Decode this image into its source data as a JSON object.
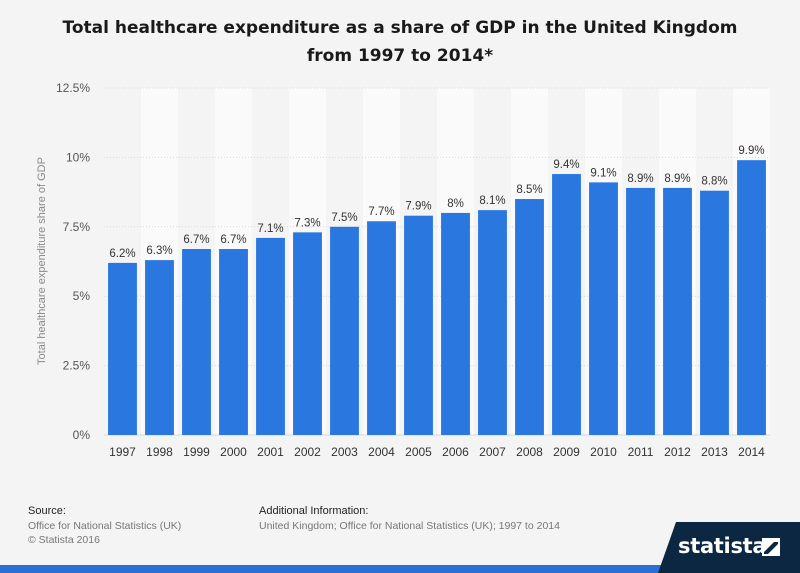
{
  "title": "Total healthcare expenditure as a share of GDP in the United Kingdom from 1997 to 2014*",
  "chart_data": {
    "type": "bar",
    "categories": [
      "1997",
      "1998",
      "1999",
      "2000",
      "2001",
      "2002",
      "2003",
      "2004",
      "2005",
      "2006",
      "2007",
      "2008",
      "2009",
      "2010",
      "2011",
      "2012",
      "2013",
      "2014"
    ],
    "values": [
      6.2,
      6.3,
      6.7,
      6.7,
      7.1,
      7.3,
      7.5,
      7.7,
      7.9,
      8.0,
      8.1,
      8.5,
      9.4,
      9.1,
      8.9,
      8.9,
      8.8,
      9.9
    ],
    "value_labels": [
      "6.2%",
      "6.3%",
      "6.7%",
      "6.7%",
      "7.1%",
      "7.3%",
      "7.5%",
      "7.7%",
      "7.9%",
      "8%",
      "8.1%",
      "8.5%",
      "9.4%",
      "9.1%",
      "8.9%",
      "8.9%",
      "8.8%",
      "9.9%"
    ],
    "ylabel": "Total healthcare expenditure share of GDP",
    "xlabel": "",
    "ylim": [
      0,
      12.5
    ],
    "yticks": [
      0,
      2.5,
      5,
      7.5,
      10,
      12.5
    ],
    "ytick_labels": [
      "0%",
      "2.5%",
      "5%",
      "7.5%",
      "10%",
      "12.5%"
    ],
    "bar_color": "#2a77e0",
    "grid": true
  },
  "footer": {
    "source_label": "Source:",
    "source_lines": [
      "Office for National Statistics (UK)",
      "© Statista 2016"
    ],
    "info_label": "Additional Information:",
    "info_text": "United Kingdom; Office for National Statistics (UK); 1997 to 2014"
  },
  "brand": {
    "name": "statista",
    "icon": "statista-logo-icon"
  }
}
